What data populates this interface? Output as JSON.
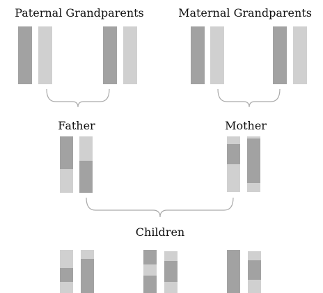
{
  "paternal_grandparents": "Paternal Grandparents",
  "maternal_grandparents": "Maternal Grandparents",
  "father": "Father",
  "mother": "Mother",
  "children": "Children"
}
